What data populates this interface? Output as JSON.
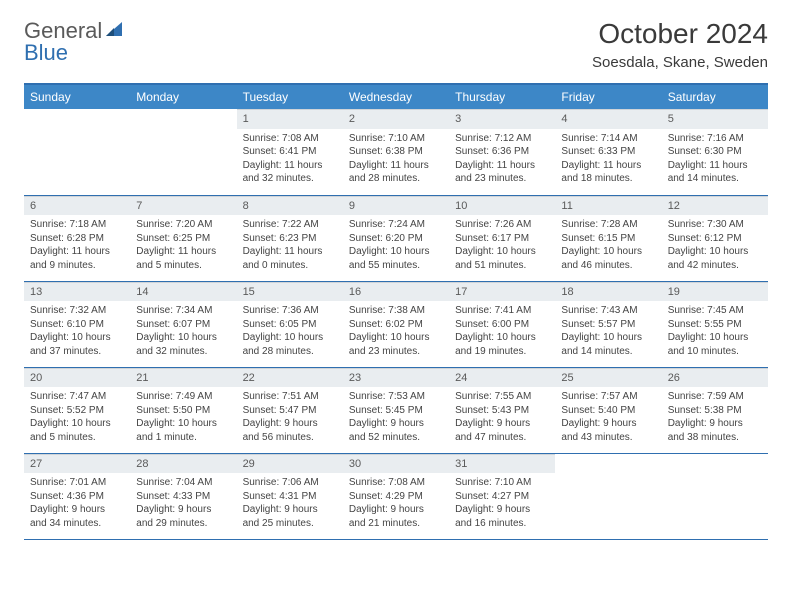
{
  "brand": {
    "part1": "General",
    "part2": "Blue"
  },
  "title": "October 2024",
  "location": "Soesdala, Skane, Sweden",
  "colors": {
    "header_bg": "#3d87c7",
    "header_border": "#2f6fb0",
    "daynum_bg": "#e9edf0",
    "text": "#444444"
  },
  "day_headers": [
    "Sunday",
    "Monday",
    "Tuesday",
    "Wednesday",
    "Thursday",
    "Friday",
    "Saturday"
  ],
  "weeks": [
    [
      {
        "n": "",
        "lines": [
          "",
          "",
          "",
          ""
        ]
      },
      {
        "n": "",
        "lines": [
          "",
          "",
          "",
          ""
        ]
      },
      {
        "n": "1",
        "lines": [
          "Sunrise: 7:08 AM",
          "Sunset: 6:41 PM",
          "Daylight: 11 hours",
          "and 32 minutes."
        ]
      },
      {
        "n": "2",
        "lines": [
          "Sunrise: 7:10 AM",
          "Sunset: 6:38 PM",
          "Daylight: 11 hours",
          "and 28 minutes."
        ]
      },
      {
        "n": "3",
        "lines": [
          "Sunrise: 7:12 AM",
          "Sunset: 6:36 PM",
          "Daylight: 11 hours",
          "and 23 minutes."
        ]
      },
      {
        "n": "4",
        "lines": [
          "Sunrise: 7:14 AM",
          "Sunset: 6:33 PM",
          "Daylight: 11 hours",
          "and 18 minutes."
        ]
      },
      {
        "n": "5",
        "lines": [
          "Sunrise: 7:16 AM",
          "Sunset: 6:30 PM",
          "Daylight: 11 hours",
          "and 14 minutes."
        ]
      }
    ],
    [
      {
        "n": "6",
        "lines": [
          "Sunrise: 7:18 AM",
          "Sunset: 6:28 PM",
          "Daylight: 11 hours",
          "and 9 minutes."
        ]
      },
      {
        "n": "7",
        "lines": [
          "Sunrise: 7:20 AM",
          "Sunset: 6:25 PM",
          "Daylight: 11 hours",
          "and 5 minutes."
        ]
      },
      {
        "n": "8",
        "lines": [
          "Sunrise: 7:22 AM",
          "Sunset: 6:23 PM",
          "Daylight: 11 hours",
          "and 0 minutes."
        ]
      },
      {
        "n": "9",
        "lines": [
          "Sunrise: 7:24 AM",
          "Sunset: 6:20 PM",
          "Daylight: 10 hours",
          "and 55 minutes."
        ]
      },
      {
        "n": "10",
        "lines": [
          "Sunrise: 7:26 AM",
          "Sunset: 6:17 PM",
          "Daylight: 10 hours",
          "and 51 minutes."
        ]
      },
      {
        "n": "11",
        "lines": [
          "Sunrise: 7:28 AM",
          "Sunset: 6:15 PM",
          "Daylight: 10 hours",
          "and 46 minutes."
        ]
      },
      {
        "n": "12",
        "lines": [
          "Sunrise: 7:30 AM",
          "Sunset: 6:12 PM",
          "Daylight: 10 hours",
          "and 42 minutes."
        ]
      }
    ],
    [
      {
        "n": "13",
        "lines": [
          "Sunrise: 7:32 AM",
          "Sunset: 6:10 PM",
          "Daylight: 10 hours",
          "and 37 minutes."
        ]
      },
      {
        "n": "14",
        "lines": [
          "Sunrise: 7:34 AM",
          "Sunset: 6:07 PM",
          "Daylight: 10 hours",
          "and 32 minutes."
        ]
      },
      {
        "n": "15",
        "lines": [
          "Sunrise: 7:36 AM",
          "Sunset: 6:05 PM",
          "Daylight: 10 hours",
          "and 28 minutes."
        ]
      },
      {
        "n": "16",
        "lines": [
          "Sunrise: 7:38 AM",
          "Sunset: 6:02 PM",
          "Daylight: 10 hours",
          "and 23 minutes."
        ]
      },
      {
        "n": "17",
        "lines": [
          "Sunrise: 7:41 AM",
          "Sunset: 6:00 PM",
          "Daylight: 10 hours",
          "and 19 minutes."
        ]
      },
      {
        "n": "18",
        "lines": [
          "Sunrise: 7:43 AM",
          "Sunset: 5:57 PM",
          "Daylight: 10 hours",
          "and 14 minutes."
        ]
      },
      {
        "n": "19",
        "lines": [
          "Sunrise: 7:45 AM",
          "Sunset: 5:55 PM",
          "Daylight: 10 hours",
          "and 10 minutes."
        ]
      }
    ],
    [
      {
        "n": "20",
        "lines": [
          "Sunrise: 7:47 AM",
          "Sunset: 5:52 PM",
          "Daylight: 10 hours",
          "and 5 minutes."
        ]
      },
      {
        "n": "21",
        "lines": [
          "Sunrise: 7:49 AM",
          "Sunset: 5:50 PM",
          "Daylight: 10 hours",
          "and 1 minute."
        ]
      },
      {
        "n": "22",
        "lines": [
          "Sunrise: 7:51 AM",
          "Sunset: 5:47 PM",
          "Daylight: 9 hours",
          "and 56 minutes."
        ]
      },
      {
        "n": "23",
        "lines": [
          "Sunrise: 7:53 AM",
          "Sunset: 5:45 PM",
          "Daylight: 9 hours",
          "and 52 minutes."
        ]
      },
      {
        "n": "24",
        "lines": [
          "Sunrise: 7:55 AM",
          "Sunset: 5:43 PM",
          "Daylight: 9 hours",
          "and 47 minutes."
        ]
      },
      {
        "n": "25",
        "lines": [
          "Sunrise: 7:57 AM",
          "Sunset: 5:40 PM",
          "Daylight: 9 hours",
          "and 43 minutes."
        ]
      },
      {
        "n": "26",
        "lines": [
          "Sunrise: 7:59 AM",
          "Sunset: 5:38 PM",
          "Daylight: 9 hours",
          "and 38 minutes."
        ]
      }
    ],
    [
      {
        "n": "27",
        "lines": [
          "Sunrise: 7:01 AM",
          "Sunset: 4:36 PM",
          "Daylight: 9 hours",
          "and 34 minutes."
        ]
      },
      {
        "n": "28",
        "lines": [
          "Sunrise: 7:04 AM",
          "Sunset: 4:33 PM",
          "Daylight: 9 hours",
          "and 29 minutes."
        ]
      },
      {
        "n": "29",
        "lines": [
          "Sunrise: 7:06 AM",
          "Sunset: 4:31 PM",
          "Daylight: 9 hours",
          "and 25 minutes."
        ]
      },
      {
        "n": "30",
        "lines": [
          "Sunrise: 7:08 AM",
          "Sunset: 4:29 PM",
          "Daylight: 9 hours",
          "and 21 minutes."
        ]
      },
      {
        "n": "31",
        "lines": [
          "Sunrise: 7:10 AM",
          "Sunset: 4:27 PM",
          "Daylight: 9 hours",
          "and 16 minutes."
        ]
      },
      {
        "n": "",
        "lines": [
          "",
          "",
          "",
          ""
        ]
      },
      {
        "n": "",
        "lines": [
          "",
          "",
          "",
          ""
        ]
      }
    ]
  ]
}
